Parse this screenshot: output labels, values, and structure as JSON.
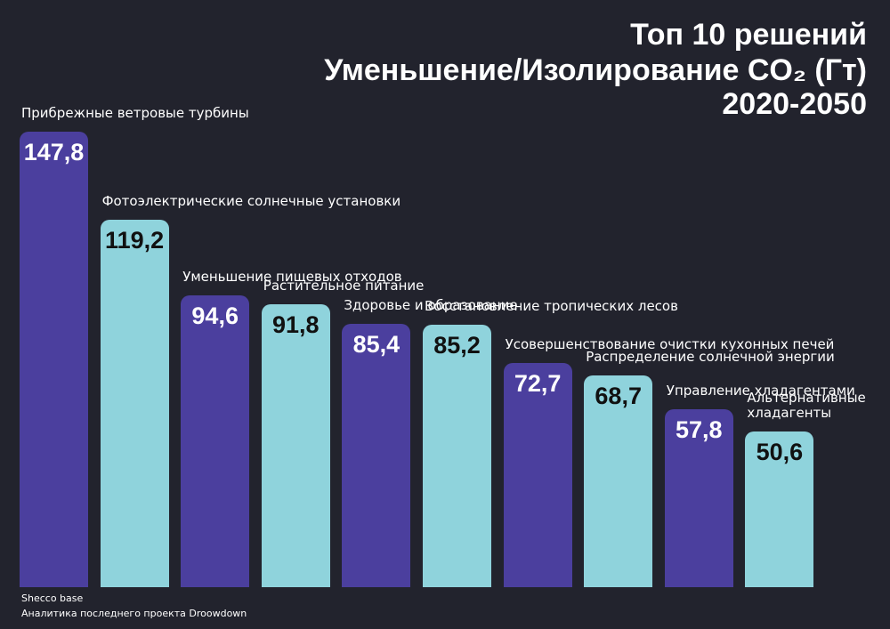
{
  "chart_data": {
    "type": "bar",
    "title": "Топ 10 решений",
    "subtitle": "Уменьшение/Изолирование CO₂ (Гт)",
    "period": "2020-2050",
    "categories": [
      "Прибрежные ветровые турбины",
      "Фотоэлектрические солнечные установки",
      "Уменьшение пищевых отходов",
      "Растительное питание",
      "Здоровье и образование",
      "Восстановление тропических  лесов",
      "Усовершенствование очистки кухонных печей",
      "Распределение солнечной энергии",
      "Управление хладагентами",
      "Альтернативные хладагенты"
    ],
    "values": [
      147.8,
      119.2,
      94.6,
      91.8,
      85.4,
      85.2,
      72.7,
      68.7,
      57.8,
      50.6
    ],
    "value_labels": [
      "147,8",
      "119,2",
      "94,6",
      "91,8",
      "85,4",
      "85,2",
      "72,7",
      "68,7",
      "57,8",
      "50,6"
    ],
    "colors": [
      "#4b3f9e",
      "#8fd3dc",
      "#4b3f9e",
      "#8fd3dc",
      "#4b3f9e",
      "#8fd3dc",
      "#4b3f9e",
      "#8fd3dc",
      "#4b3f9e",
      "#8fd3dc"
    ],
    "source": [
      "Shecco base",
      "Аналитика последнего проекта Droowdown"
    ]
  }
}
